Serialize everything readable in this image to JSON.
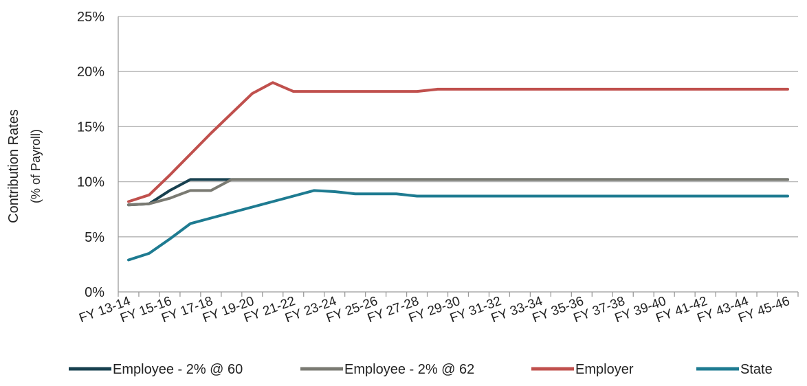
{
  "chart_data": {
    "type": "line",
    "title": "",
    "ylabel": "Contribution Rates",
    "ylabel_sub": "(% of Payroll)",
    "xlabel": "",
    "ylim": [
      0,
      25
    ],
    "yticks": [
      0,
      5,
      10,
      15,
      20,
      25
    ],
    "ytick_labels": [
      "0%",
      "5%",
      "10%",
      "15%",
      "20%",
      "25%"
    ],
    "grid": "horizontal",
    "legend_position": "bottom",
    "categories": [
      "FY 13-14",
      "FY 14-15",
      "FY 15-16",
      "FY 16-17",
      "FY 17-18",
      "FY 18-19",
      "FY 19-20",
      "FY 20-21",
      "FY 21-22",
      "FY 22-23",
      "FY 23-24",
      "FY 24-25",
      "FY 25-26",
      "FY 26-27",
      "FY 27-28",
      "FY 28-29",
      "FY 29-30",
      "FY 30-31",
      "FY 31-32",
      "FY 32-33",
      "FY 33-34",
      "FY 34-35",
      "FY 35-36",
      "FY 36-37",
      "FY 37-38",
      "FY 38-39",
      "FY 39-40",
      "FY 40-41",
      "FY 41-42",
      "FY 42-43",
      "FY 43-44",
      "FY 44-45",
      "FY 45-46"
    ],
    "x_tick_labels": [
      "FY 13-14",
      "FY 15-16",
      "FY 17-18",
      "FY 19-20",
      "FY 21-22",
      "FY 23-24",
      "FY 25-26",
      "FY 27-28",
      "FY 29-30",
      "FY 31-32",
      "FY 33-34",
      "FY 35-36",
      "FY 37-38",
      "FY 39-40",
      "FY 41-42",
      "FY 43-44",
      "FY 45-46"
    ],
    "series": [
      {
        "name": "Employee - 2% @ 60",
        "color": "#17404f",
        "values": [
          7.9,
          8.0,
          9.2,
          10.2,
          10.2,
          10.2,
          10.2,
          10.2,
          10.2,
          10.2,
          10.2,
          10.2,
          10.2,
          10.2,
          10.2,
          10.2,
          10.2,
          10.2,
          10.2,
          10.2,
          10.2,
          10.2,
          10.2,
          10.2,
          10.2,
          10.2,
          10.2,
          10.2,
          10.2,
          10.2,
          10.2,
          10.2,
          10.2
        ]
      },
      {
        "name": "Employee - 2% @ 62",
        "color": "#7a7a72",
        "values": [
          7.9,
          8.0,
          8.5,
          9.2,
          9.2,
          10.2,
          10.2,
          10.2,
          10.2,
          10.2,
          10.2,
          10.2,
          10.2,
          10.2,
          10.2,
          10.2,
          10.2,
          10.2,
          10.2,
          10.2,
          10.2,
          10.2,
          10.2,
          10.2,
          10.2,
          10.2,
          10.2,
          10.2,
          10.2,
          10.2,
          10.2,
          10.2,
          10.2
        ]
      },
      {
        "name": "Employer",
        "color": "#c0504d",
        "values": [
          8.2,
          8.8,
          10.6,
          12.5,
          14.4,
          16.2,
          18.0,
          19.0,
          18.2,
          18.2,
          18.2,
          18.2,
          18.2,
          18.2,
          18.2,
          18.4,
          18.4,
          18.4,
          18.4,
          18.4,
          18.4,
          18.4,
          18.4,
          18.4,
          18.4,
          18.4,
          18.4,
          18.4,
          18.4,
          18.4,
          18.4,
          18.4,
          18.4
        ]
      },
      {
        "name": "State",
        "color": "#1e7b91",
        "values": [
          2.9,
          3.5,
          4.8,
          6.2,
          6.7,
          7.2,
          7.7,
          8.2,
          8.7,
          9.2,
          9.1,
          8.9,
          8.9,
          8.9,
          8.7,
          8.7,
          8.7,
          8.7,
          8.7,
          8.7,
          8.7,
          8.7,
          8.7,
          8.7,
          8.7,
          8.7,
          8.7,
          8.7,
          8.7,
          8.7,
          8.7,
          8.7,
          8.7
        ]
      }
    ]
  }
}
